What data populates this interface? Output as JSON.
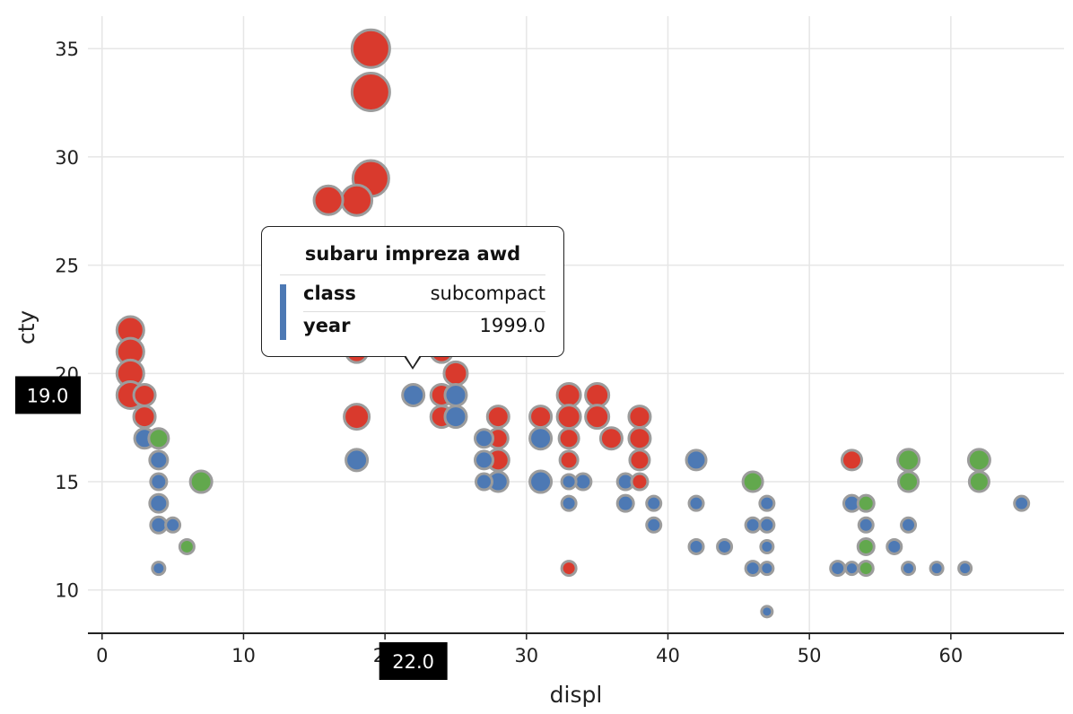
{
  "chart_data": {
    "type": "scatter",
    "xlabel": "displ",
    "ylabel": "cty",
    "xlim": [
      -1,
      68
    ],
    "ylim": [
      8,
      36.5
    ],
    "x_ticks": [
      "0",
      "10",
      "20",
      "30",
      "40",
      "50",
      "60"
    ],
    "y_ticks": [
      "10",
      "15",
      "20",
      "25",
      "30",
      "35"
    ],
    "grid": true,
    "colors": {
      "red": "#d93a2d",
      "blue": "#4d79b4",
      "green": "#62a84d",
      "stroke": "#9c9c9c"
    },
    "points": [
      {
        "x": 2,
        "y": 22,
        "s": 15,
        "c": "red"
      },
      {
        "x": 2,
        "y": 21,
        "s": 15,
        "c": "red"
      },
      {
        "x": 2,
        "y": 20,
        "s": 15,
        "c": "red"
      },
      {
        "x": 2,
        "y": 19,
        "s": 15,
        "c": "red"
      },
      {
        "x": 3,
        "y": 19,
        "s": 12,
        "c": "red"
      },
      {
        "x": 3,
        "y": 18,
        "s": 12,
        "c": "red"
      },
      {
        "x": 3,
        "y": 17,
        "s": 11,
        "c": "blue"
      },
      {
        "x": 4,
        "y": 17,
        "s": 11,
        "c": "green"
      },
      {
        "x": 4,
        "y": 16,
        "s": 10,
        "c": "blue"
      },
      {
        "x": 4,
        "y": 15,
        "s": 9,
        "c": "blue"
      },
      {
        "x": 4,
        "y": 14,
        "s": 10,
        "c": "blue"
      },
      {
        "x": 4,
        "y": 13,
        "s": 9,
        "c": "blue"
      },
      {
        "x": 4,
        "y": 11,
        "s": 7,
        "c": "blue"
      },
      {
        "x": 5,
        "y": 13,
        "s": 8,
        "c": "blue"
      },
      {
        "x": 6,
        "y": 12,
        "s": 8,
        "c": "green"
      },
      {
        "x": 7,
        "y": 15,
        "s": 12,
        "c": "green"
      },
      {
        "x": 16,
        "y": 28,
        "s": 16,
        "c": "red"
      },
      {
        "x": 18,
        "y": 28,
        "s": 17,
        "c": "red"
      },
      {
        "x": 18,
        "y": 21,
        "s": 12,
        "c": "red"
      },
      {
        "x": 18,
        "y": 18,
        "s": 14,
        "c": "red"
      },
      {
        "x": 18,
        "y": 16,
        "s": 12,
        "c": "blue"
      },
      {
        "x": 19,
        "y": 35,
        "s": 21,
        "c": "red"
      },
      {
        "x": 19,
        "y": 33,
        "s": 21,
        "c": "red"
      },
      {
        "x": 19,
        "y": 29,
        "s": 20,
        "c": "red"
      },
      {
        "x": 22,
        "y": 19,
        "s": 12,
        "c": "blue"
      },
      {
        "x": 24,
        "y": 21,
        "s": 12,
        "c": "red"
      },
      {
        "x": 24,
        "y": 19,
        "s": 12,
        "c": "red"
      },
      {
        "x": 24,
        "y": 18,
        "s": 12,
        "c": "red"
      },
      {
        "x": 25,
        "y": 20,
        "s": 13,
        "c": "red"
      },
      {
        "x": 25,
        "y": 19,
        "s": 12,
        "c": "blue"
      },
      {
        "x": 25,
        "y": 18,
        "s": 12,
        "c": "blue"
      },
      {
        "x": 27,
        "y": 17,
        "s": 10,
        "c": "blue"
      },
      {
        "x": 27,
        "y": 16,
        "s": 10,
        "c": "blue"
      },
      {
        "x": 27,
        "y": 15,
        "s": 9,
        "c": "blue"
      },
      {
        "x": 28,
        "y": 18,
        "s": 12,
        "c": "red"
      },
      {
        "x": 28,
        "y": 17,
        "s": 11,
        "c": "red"
      },
      {
        "x": 28,
        "y": 16,
        "s": 12,
        "c": "red"
      },
      {
        "x": 28,
        "y": 15,
        "s": 11,
        "c": "blue"
      },
      {
        "x": 31,
        "y": 18,
        "s": 12,
        "c": "red"
      },
      {
        "x": 31,
        "y": 17,
        "s": 12,
        "c": "blue"
      },
      {
        "x": 31,
        "y": 15,
        "s": 12,
        "c": "blue"
      },
      {
        "x": 33,
        "y": 19,
        "s": 13,
        "c": "red"
      },
      {
        "x": 33,
        "y": 18,
        "s": 13,
        "c": "red"
      },
      {
        "x": 33,
        "y": 17,
        "s": 11,
        "c": "red"
      },
      {
        "x": 33,
        "y": 16,
        "s": 10,
        "c": "red"
      },
      {
        "x": 33,
        "y": 15,
        "s": 8,
        "c": "blue"
      },
      {
        "x": 33,
        "y": 14,
        "s": 8,
        "c": "blue"
      },
      {
        "x": 33,
        "y": 11,
        "s": 8,
        "c": "red"
      },
      {
        "x": 34,
        "y": 15,
        "s": 9,
        "c": "blue"
      },
      {
        "x": 35,
        "y": 19,
        "s": 13,
        "c": "red"
      },
      {
        "x": 35,
        "y": 18,
        "s": 13,
        "c": "red"
      },
      {
        "x": 36,
        "y": 17,
        "s": 12,
        "c": "red"
      },
      {
        "x": 37,
        "y": 15,
        "s": 9,
        "c": "blue"
      },
      {
        "x": 37,
        "y": 14,
        "s": 9,
        "c": "blue"
      },
      {
        "x": 38,
        "y": 18,
        "s": 12,
        "c": "red"
      },
      {
        "x": 38,
        "y": 17,
        "s": 12,
        "c": "red"
      },
      {
        "x": 38,
        "y": 16,
        "s": 11,
        "c": "red"
      },
      {
        "x": 38,
        "y": 15,
        "s": 9,
        "c": "red"
      },
      {
        "x": 39,
        "y": 14,
        "s": 8,
        "c": "blue"
      },
      {
        "x": 39,
        "y": 13,
        "s": 8,
        "c": "blue"
      },
      {
        "x": 42,
        "y": 16,
        "s": 11,
        "c": "blue"
      },
      {
        "x": 42,
        "y": 14,
        "s": 8,
        "c": "blue"
      },
      {
        "x": 42,
        "y": 12,
        "s": 8,
        "c": "blue"
      },
      {
        "x": 44,
        "y": 12,
        "s": 8,
        "c": "blue"
      },
      {
        "x": 46,
        "y": 15,
        "s": 11,
        "c": "green"
      },
      {
        "x": 46,
        "y": 13,
        "s": 8,
        "c": "blue"
      },
      {
        "x": 46,
        "y": 11,
        "s": 8,
        "c": "blue"
      },
      {
        "x": 47,
        "y": 14,
        "s": 8,
        "c": "blue"
      },
      {
        "x": 47,
        "y": 13,
        "s": 8,
        "c": "blue"
      },
      {
        "x": 47,
        "y": 12,
        "s": 7,
        "c": "blue"
      },
      {
        "x": 47,
        "y": 11,
        "s": 7,
        "c": "blue"
      },
      {
        "x": 47,
        "y": 9,
        "s": 6,
        "c": "blue"
      },
      {
        "x": 52,
        "y": 11,
        "s": 8,
        "c": "blue"
      },
      {
        "x": 53,
        "y": 16,
        "s": 11,
        "c": "red"
      },
      {
        "x": 53,
        "y": 14,
        "s": 9,
        "c": "blue"
      },
      {
        "x": 53,
        "y": 11,
        "s": 7,
        "c": "blue"
      },
      {
        "x": 54,
        "y": 14,
        "s": 9,
        "c": "green"
      },
      {
        "x": 54,
        "y": 13,
        "s": 8,
        "c": "blue"
      },
      {
        "x": 54,
        "y": 12,
        "s": 9,
        "c": "green"
      },
      {
        "x": 54,
        "y": 11,
        "s": 8,
        "c": "green"
      },
      {
        "x": 56,
        "y": 12,
        "s": 8,
        "c": "blue"
      },
      {
        "x": 57,
        "y": 16,
        "s": 12,
        "c": "green"
      },
      {
        "x": 57,
        "y": 15,
        "s": 11,
        "c": "green"
      },
      {
        "x": 57,
        "y": 13,
        "s": 8,
        "c": "blue"
      },
      {
        "x": 57,
        "y": 11,
        "s": 7,
        "c": "blue"
      },
      {
        "x": 59,
        "y": 11,
        "s": 7,
        "c": "blue"
      },
      {
        "x": 61,
        "y": 11,
        "s": 7,
        "c": "blue"
      },
      {
        "x": 62,
        "y": 16,
        "s": 12,
        "c": "green"
      },
      {
        "x": 62,
        "y": 15,
        "s": 11,
        "c": "green"
      },
      {
        "x": 65,
        "y": 14,
        "s": 8,
        "c": "blue"
      }
    ]
  },
  "crosshair": {
    "x_label": "22.0",
    "y_label": "19.0"
  },
  "tooltip": {
    "title": "subaru impreza awd",
    "rows": [
      {
        "key": "class",
        "value": "subcompact"
      },
      {
        "key": "year",
        "value": "1999.0"
      }
    ],
    "color": "#4d79b4"
  }
}
